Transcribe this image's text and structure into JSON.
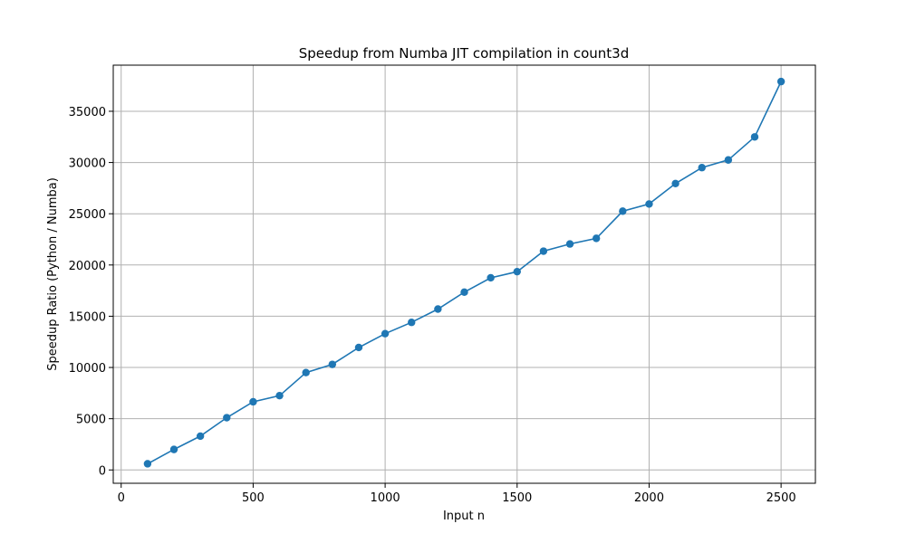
{
  "chart_data": {
    "type": "line",
    "title": "Speedup from Numba JIT compilation in count3d",
    "xlabel": "Input n",
    "ylabel": "Speedup Ratio (Python / Numba)",
    "xlim": [
      -30,
      2630
    ],
    "ylim": [
      -1300,
      39500
    ],
    "xticks": [
      0,
      500,
      1000,
      1500,
      2000,
      2500
    ],
    "yticks": [
      0,
      5000,
      10000,
      15000,
      20000,
      25000,
      30000,
      35000
    ],
    "grid": true,
    "marker": "circle",
    "color": "#1f77b4",
    "series": [
      {
        "x": [
          100,
          200,
          300,
          400,
          500,
          600,
          700,
          800,
          900,
          1000,
          1100,
          1200,
          1300,
          1400,
          1500,
          1600,
          1700,
          1800,
          1900,
          2000,
          2100,
          2200,
          2300,
          2400,
          2500
        ],
        "values": [
          600,
          2000,
          3300,
          5100,
          6650,
          7250,
          9500,
          10300,
          11950,
          13300,
          14400,
          15700,
          17350,
          18750,
          19350,
          21350,
          22050,
          22600,
          25250,
          25950,
          27950,
          29500,
          30250,
          32500,
          37900
        ]
      }
    ]
  }
}
